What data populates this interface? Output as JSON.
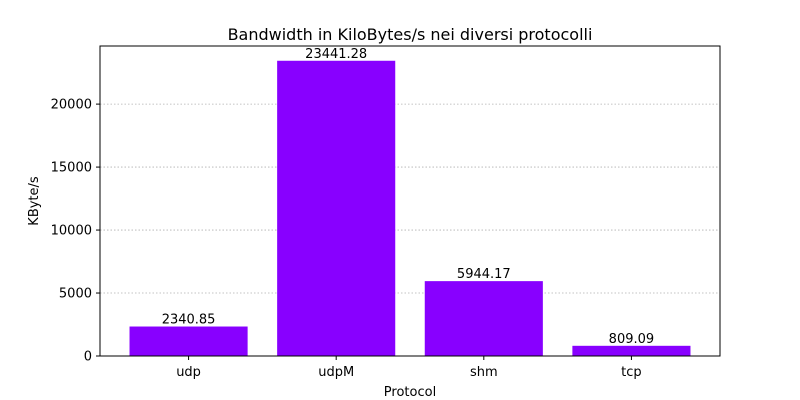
{
  "chart_data": {
    "type": "bar",
    "title": "Bandwidth in KiloBytes/s nei diversi protocolli",
    "xlabel": "Protocol",
    "ylabel": "KByte/s",
    "categories": [
      "udp",
      "udpM",
      "shm",
      "tcp"
    ],
    "values": [
      2340.85,
      23441.28,
      5944.17,
      809.09
    ],
    "data_labels": [
      "2340.85",
      "23441.28",
      "5944.17",
      "809.09"
    ],
    "ylim": [
      0,
      24613.34
    ],
    "yticks": [
      0,
      5000,
      10000,
      15000,
      20000
    ],
    "ytick_labels": [
      "0",
      "5000",
      "10000",
      "15000",
      "20000"
    ],
    "grid": "y-dotted",
    "bar_color": "#8800ff"
  }
}
